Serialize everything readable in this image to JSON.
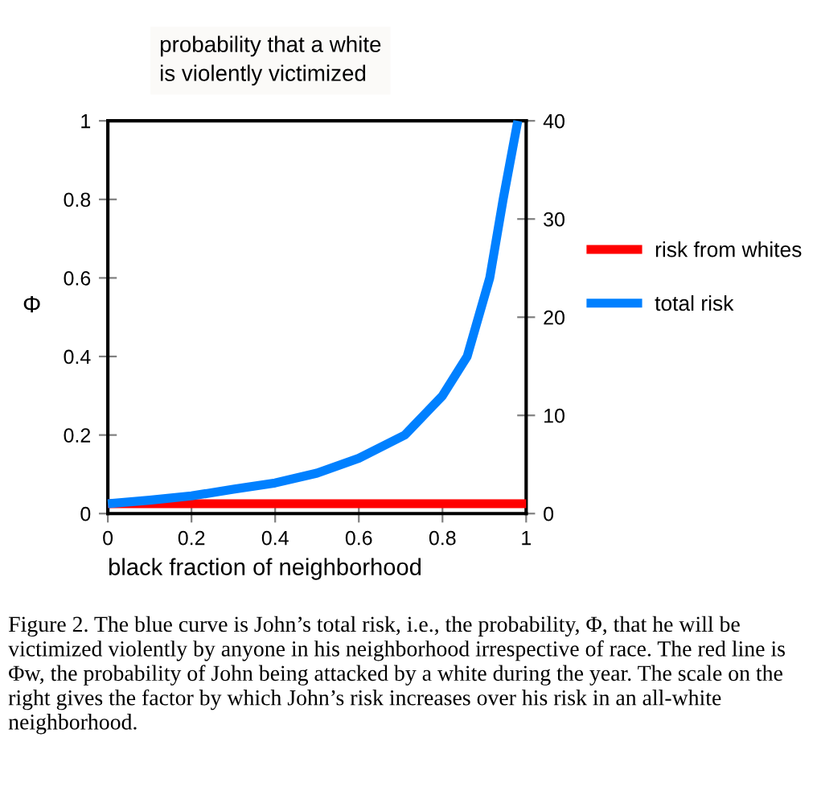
{
  "chart_data": {
    "type": "line",
    "title": "probability that a white\nis violently victimized",
    "xlabel": "black fraction of neighborhood",
    "ylabel": "Φ",
    "xlim": [
      0,
      1
    ],
    "xticks": [
      0,
      0.2,
      0.4,
      0.6,
      0.8,
      1
    ],
    "ylim": [
      0,
      1
    ],
    "yticks": [
      0,
      0.2,
      0.4,
      0.6,
      0.8,
      1
    ],
    "y2lim": [
      0,
      40
    ],
    "y2ticks": [
      0,
      10,
      20,
      30,
      40
    ],
    "series": [
      {
        "name": "risk from whites",
        "color": "#ff0000",
        "x": [
          0,
          1
        ],
        "values": [
          0.025,
          0.025
        ]
      },
      {
        "name": "total risk",
        "color": "#0080ff",
        "x": [
          0,
          0.1,
          0.2,
          0.3,
          0.4,
          0.5,
          0.6,
          0.71,
          0.8,
          0.859,
          0.913,
          0.945,
          0.98
        ],
        "values": [
          0.025,
          0.034,
          0.045,
          0.062,
          0.078,
          0.103,
          0.141,
          0.2,
          0.3,
          0.4,
          0.6,
          0.8,
          1
        ]
      }
    ],
    "legend": "right",
    "grid": false,
    "annotations": [
      "Figure 2. The blue curve is John’s total risk, i.e., the probability, Φ, that he will be victimized violently by anyone in his neighborhood irrespective of race. The red line is Φw, the probability of John being attacked by a white during the year. The scale on the right gives the factor by which John’s risk increases over his risk in an all-white neighborhood."
    ]
  }
}
